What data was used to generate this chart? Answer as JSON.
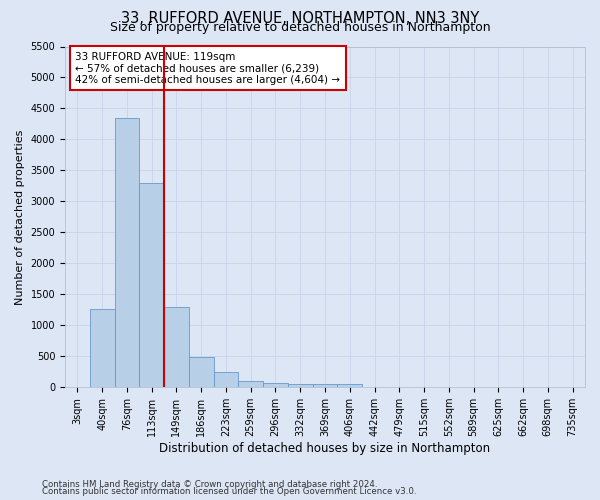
{
  "title": "33, RUFFORD AVENUE, NORTHAMPTON, NN3 3NY",
  "subtitle": "Size of property relative to detached houses in Northampton",
  "xlabel": "Distribution of detached houses by size in Northampton",
  "ylabel": "Number of detached properties",
  "footer_line1": "Contains HM Land Registry data © Crown copyright and database right 2024.",
  "footer_line2": "Contains public sector information licensed under the Open Government Licence v3.0.",
  "categories": [
    "3sqm",
    "40sqm",
    "76sqm",
    "113sqm",
    "149sqm",
    "186sqm",
    "223sqm",
    "259sqm",
    "296sqm",
    "332sqm",
    "369sqm",
    "406sqm",
    "442sqm",
    "479sqm",
    "515sqm",
    "552sqm",
    "589sqm",
    "625sqm",
    "662sqm",
    "698sqm",
    "735sqm"
  ],
  "values": [
    0,
    1270,
    4350,
    3300,
    1290,
    480,
    240,
    100,
    70,
    55,
    45,
    45,
    0,
    0,
    0,
    0,
    0,
    0,
    0,
    0,
    0
  ],
  "bar_color": "#b8cfe8",
  "bar_edge_color": "#6699cc",
  "annotation_text": "33 RUFFORD AVENUE: 119sqm\n← 57% of detached houses are smaller (6,239)\n42% of semi-detached houses are larger (4,604) →",
  "annotation_box_facecolor": "#ffffff",
  "annotation_box_edgecolor": "#cc0000",
  "ylim": [
    0,
    5500
  ],
  "yticks": [
    0,
    500,
    1000,
    1500,
    2000,
    2500,
    3000,
    3500,
    4000,
    4500,
    5000,
    5500
  ],
  "red_line_color": "#cc0000",
  "grid_color": "#c8d4e8",
  "background_color": "#dce6f5",
  "title_fontsize": 10.5,
  "subtitle_fontsize": 9,
  "xlabel_fontsize": 8.5,
  "ylabel_fontsize": 8,
  "tick_fontsize": 7,
  "annotation_fontsize": 7.5,
  "footer_fontsize": 6.2,
  "red_line_index": 3
}
